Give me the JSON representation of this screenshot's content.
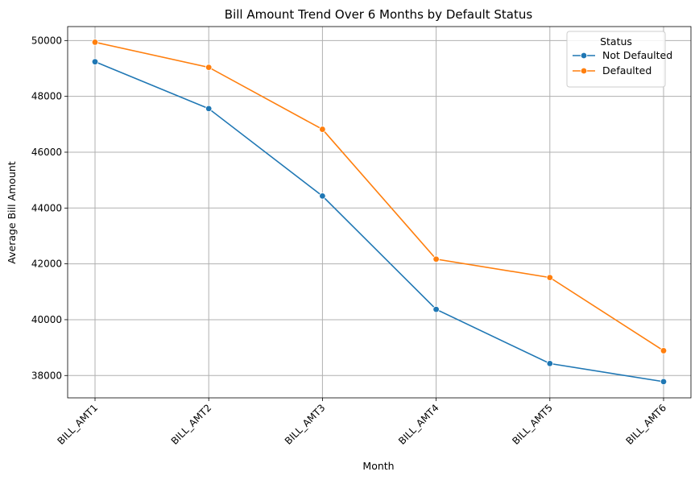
{
  "chart_data": {
    "type": "line",
    "title": "Bill Amount Trend Over 6 Months by Default Status",
    "xlabel": "Month",
    "ylabel": "Average Bill Amount",
    "categories": [
      "BILL_AMT1",
      "BILL_AMT2",
      "BILL_AMT3",
      "BILL_AMT4",
      "BILL_AMT5",
      "BILL_AMT6"
    ],
    "yticks": [
      38000,
      40000,
      42000,
      44000,
      46000,
      48000,
      50000
    ],
    "ylim": [
      37200,
      50500
    ],
    "grid": true,
    "legend": {
      "title": "Status",
      "placement": "top-right"
    },
    "series": [
      {
        "name": "Not Defaulted",
        "color": "#1f77b4",
        "values": [
          49240,
          47560,
          44430,
          40370,
          38430,
          37780
        ]
      },
      {
        "name": "Defaulted",
        "color": "#ff7f0e",
        "values": [
          49940,
          49040,
          46820,
          42170,
          41510,
          38890
        ]
      }
    ]
  }
}
